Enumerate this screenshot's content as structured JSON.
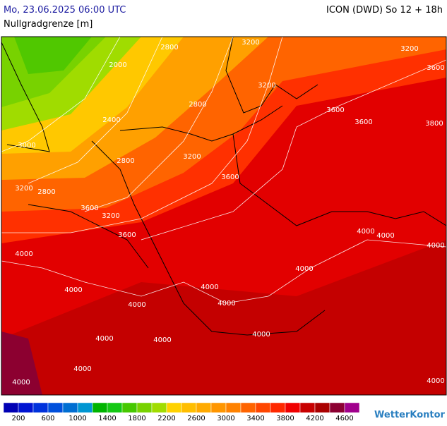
{
  "header": {
    "date": "Mo, 23.06.2025 06:00 UTC",
    "model": "ICON (DWD) So 12 + 18h",
    "parameter": "Nullgradgrenze [m]"
  },
  "contour_labels": [
    2800,
    2000,
    3200,
    3200,
    3200,
    3600,
    2800,
    2400,
    3600,
    3600,
    3800,
    3000,
    2800,
    3200,
    3600,
    3200,
    2800,
    3600,
    3200,
    3600,
    4000,
    4000,
    4000,
    4000,
    4000,
    4000,
    4000,
    4000,
    4000,
    4000,
    4000,
    4000,
    4000,
    4000,
    4000
  ],
  "legend": {
    "colors": [
      "#0000b4",
      "#0014d2",
      "#0032dc",
      "#0050dc",
      "#006ed2",
      "#0096d2",
      "#00b400",
      "#14c814",
      "#46c800",
      "#78d200",
      "#a0dc00",
      "#ffd200",
      "#ffbe00",
      "#ffaa00",
      "#ff9600",
      "#ff8200",
      "#ff6400",
      "#ff4600",
      "#ff2800",
      "#f00000",
      "#c80000",
      "#aa0000",
      "#8c0032",
      "#a0008c"
    ],
    "labels": [
      200,
      600,
      1000,
      1400,
      1800,
      2200,
      2600,
      3000,
      3400,
      3800,
      4200,
      4600
    ]
  },
  "logo": "WetterKontor"
}
